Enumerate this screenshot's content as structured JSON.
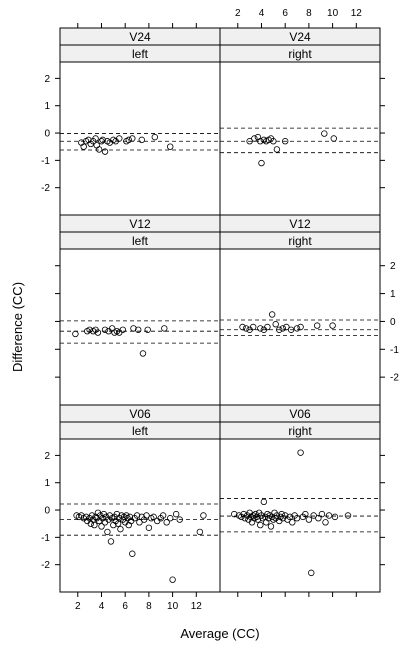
{
  "chart_data": {
    "type": "scatter",
    "xlabel": "Average (CC)",
    "ylabel": "Difference (CC)",
    "xlim": [
      0.5,
      14
    ],
    "ylim": [
      -3,
      2.6
    ],
    "x_ticks": [
      2,
      4,
      6,
      8,
      10,
      12
    ],
    "y_ticks": [
      -2,
      -1,
      0,
      1,
      2
    ],
    "panels": [
      {
        "visit": "V24",
        "side": "left",
        "ref_lines": [
          -0.02,
          -0.3,
          -0.62
        ],
        "points": [
          [
            2.3,
            -0.35
          ],
          [
            2.5,
            -0.5
          ],
          [
            2.7,
            -0.3
          ],
          [
            2.9,
            -0.25
          ],
          [
            3.1,
            -0.4
          ],
          [
            3.3,
            -0.3
          ],
          [
            3.5,
            -0.2
          ],
          [
            3.6,
            -0.45
          ],
          [
            3.8,
            -0.6
          ],
          [
            4.0,
            -0.3
          ],
          [
            4.1,
            -0.25
          ],
          [
            4.3,
            -0.68
          ],
          [
            4.5,
            -0.3
          ],
          [
            4.7,
            -0.35
          ],
          [
            5.0,
            -0.25
          ],
          [
            5.2,
            -0.3
          ],
          [
            5.5,
            -0.2
          ],
          [
            6.1,
            -0.3
          ],
          [
            6.3,
            -0.25
          ],
          [
            6.6,
            -0.2
          ],
          [
            7.4,
            -0.25
          ],
          [
            8.5,
            -0.15
          ],
          [
            9.8,
            -0.5
          ]
        ]
      },
      {
        "visit": "V24",
        "side": "right",
        "ref_lines": [
          0.18,
          -0.3,
          -0.72
        ],
        "points": [
          [
            3.0,
            -0.3
          ],
          [
            3.4,
            -0.2
          ],
          [
            3.7,
            -0.15
          ],
          [
            3.9,
            -0.3
          ],
          [
            4.0,
            -1.1
          ],
          [
            4.2,
            -0.25
          ],
          [
            4.4,
            -0.3
          ],
          [
            4.6,
            -0.25
          ],
          [
            4.8,
            -0.2
          ],
          [
            5.0,
            -0.3
          ],
          [
            5.3,
            -0.6
          ],
          [
            6.0,
            -0.3
          ],
          [
            9.3,
            -0.02
          ],
          [
            10.1,
            -0.2
          ]
        ]
      },
      {
        "visit": "V12",
        "side": "left",
        "ref_lines": [
          0.02,
          -0.35,
          -0.78
        ],
        "points": [
          [
            1.8,
            -0.45
          ],
          [
            2.8,
            -0.35
          ],
          [
            3.0,
            -0.3
          ],
          [
            3.3,
            -0.35
          ],
          [
            3.5,
            -0.3
          ],
          [
            3.7,
            -0.4
          ],
          [
            4.3,
            -0.3
          ],
          [
            4.6,
            -0.35
          ],
          [
            4.9,
            -0.25
          ],
          [
            5.1,
            -0.4
          ],
          [
            5.3,
            -0.35
          ],
          [
            5.5,
            -0.4
          ],
          [
            5.8,
            -0.3
          ],
          [
            6.7,
            -0.25
          ],
          [
            7.1,
            -0.3
          ],
          [
            7.5,
            -1.15
          ],
          [
            7.9,
            -0.3
          ],
          [
            9.3,
            -0.25
          ]
        ]
      },
      {
        "visit": "V12",
        "side": "right",
        "ref_lines": [
          0.05,
          -0.3,
          -0.5
        ],
        "points": [
          [
            2.4,
            -0.2
          ],
          [
            2.7,
            -0.25
          ],
          [
            3.0,
            -0.3
          ],
          [
            3.3,
            -0.2
          ],
          [
            3.9,
            -0.25
          ],
          [
            4.2,
            -0.3
          ],
          [
            4.5,
            -0.2
          ],
          [
            4.9,
            0.25
          ],
          [
            5.2,
            -0.1
          ],
          [
            5.5,
            -0.3
          ],
          [
            5.8,
            -0.25
          ],
          [
            6.1,
            -0.2
          ],
          [
            6.5,
            -0.3
          ],
          [
            7.0,
            -0.25
          ],
          [
            7.3,
            -0.2
          ],
          [
            8.7,
            -0.15
          ],
          [
            10.0,
            -0.15
          ]
        ]
      },
      {
        "visit": "V06",
        "side": "left",
        "ref_lines": [
          0.22,
          -0.35,
          -0.92
        ],
        "points": [
          [
            1.9,
            -0.2
          ],
          [
            2.1,
            -0.25
          ],
          [
            2.3,
            -0.2
          ],
          [
            2.5,
            -0.3
          ],
          [
            2.7,
            -0.25
          ],
          [
            2.8,
            -0.4
          ],
          [
            3.0,
            -0.3
          ],
          [
            3.1,
            -0.5
          ],
          [
            3.2,
            -0.2
          ],
          [
            3.3,
            -0.35
          ],
          [
            3.4,
            -0.55
          ],
          [
            3.5,
            -0.25
          ],
          [
            3.6,
            -0.3
          ],
          [
            3.7,
            -0.1
          ],
          [
            3.8,
            -0.4
          ],
          [
            3.9,
            -0.2
          ],
          [
            4.0,
            -0.6
          ],
          [
            4.1,
            -0.3
          ],
          [
            4.2,
            -0.15
          ],
          [
            4.3,
            -0.45
          ],
          [
            4.4,
            -0.25
          ],
          [
            4.5,
            -0.8
          ],
          [
            4.6,
            -0.35
          ],
          [
            4.7,
            -0.2
          ],
          [
            4.8,
            -1.15
          ],
          [
            4.9,
            -0.3
          ],
          [
            5.0,
            -0.55
          ],
          [
            5.1,
            -0.25
          ],
          [
            5.2,
            -0.4
          ],
          [
            5.3,
            -0.15
          ],
          [
            5.4,
            -0.5
          ],
          [
            5.5,
            -0.3
          ],
          [
            5.6,
            -0.7
          ],
          [
            5.7,
            -0.2
          ],
          [
            5.8,
            -0.35
          ],
          [
            5.9,
            -0.25
          ],
          [
            6.0,
            -0.45
          ],
          [
            6.1,
            -0.2
          ],
          [
            6.2,
            -0.3
          ],
          [
            6.3,
            -0.55
          ],
          [
            6.4,
            -0.25
          ],
          [
            6.5,
            -0.4
          ],
          [
            6.6,
            -1.6
          ],
          [
            6.8,
            -0.3
          ],
          [
            7.0,
            -0.2
          ],
          [
            7.2,
            -0.45
          ],
          [
            7.4,
            -0.25
          ],
          [
            7.6,
            -0.35
          ],
          [
            7.8,
            -0.2
          ],
          [
            8.0,
            -0.65
          ],
          [
            8.2,
            -0.3
          ],
          [
            8.4,
            -0.25
          ],
          [
            8.7,
            -0.4
          ],
          [
            9.0,
            -0.3
          ],
          [
            9.2,
            -0.2
          ],
          [
            9.5,
            -0.45
          ],
          [
            9.8,
            -0.3
          ],
          [
            10.0,
            -2.55
          ],
          [
            10.3,
            -0.15
          ],
          [
            10.6,
            -0.35
          ],
          [
            12.3,
            -0.8
          ],
          [
            12.6,
            -0.2
          ]
        ]
      },
      {
        "visit": "V06",
        "side": "right",
        "ref_lines": [
          0.42,
          -0.22,
          -0.8
        ],
        "points": [
          [
            1.7,
            -0.15
          ],
          [
            2.1,
            -0.2
          ],
          [
            2.3,
            -0.25
          ],
          [
            2.5,
            -0.15
          ],
          [
            2.6,
            -0.3
          ],
          [
            2.8,
            -0.2
          ],
          [
            2.9,
            -0.35
          ],
          [
            3.0,
            -0.1
          ],
          [
            3.1,
            -0.25
          ],
          [
            3.2,
            -0.45
          ],
          [
            3.3,
            -0.2
          ],
          [
            3.4,
            -0.3
          ],
          [
            3.5,
            -0.15
          ],
          [
            3.6,
            -0.25
          ],
          [
            3.7,
            -0.35
          ],
          [
            3.8,
            -0.1
          ],
          [
            3.9,
            -0.55
          ],
          [
            4.0,
            -0.2
          ],
          [
            4.1,
            -0.3
          ],
          [
            4.2,
            0.3
          ],
          [
            4.3,
            -0.25
          ],
          [
            4.4,
            -0.45
          ],
          [
            4.5,
            -0.15
          ],
          [
            4.6,
            -0.3
          ],
          [
            4.7,
            -0.2
          ],
          [
            4.8,
            -0.6
          ],
          [
            4.9,
            -0.25
          ],
          [
            5.0,
            -0.35
          ],
          [
            5.1,
            -0.1
          ],
          [
            5.2,
            -0.3
          ],
          [
            5.3,
            -0.2
          ],
          [
            5.5,
            -0.4
          ],
          [
            5.6,
            -0.25
          ],
          [
            5.7,
            -0.15
          ],
          [
            5.8,
            -0.3
          ],
          [
            6.0,
            -0.2
          ],
          [
            6.2,
            -0.35
          ],
          [
            6.4,
            -0.25
          ],
          [
            6.6,
            -0.45
          ],
          [
            6.8,
            -0.2
          ],
          [
            7.0,
            -0.3
          ],
          [
            7.3,
            2.1
          ],
          [
            7.5,
            -0.25
          ],
          [
            7.7,
            -0.15
          ],
          [
            8.0,
            -0.35
          ],
          [
            8.2,
            -2.3
          ],
          [
            8.4,
            -0.2
          ],
          [
            8.8,
            -0.3
          ],
          [
            9.1,
            -0.15
          ],
          [
            9.4,
            -0.45
          ],
          [
            9.7,
            -0.2
          ],
          [
            10.2,
            -0.25
          ],
          [
            11.3,
            -0.2
          ]
        ]
      }
    ]
  }
}
